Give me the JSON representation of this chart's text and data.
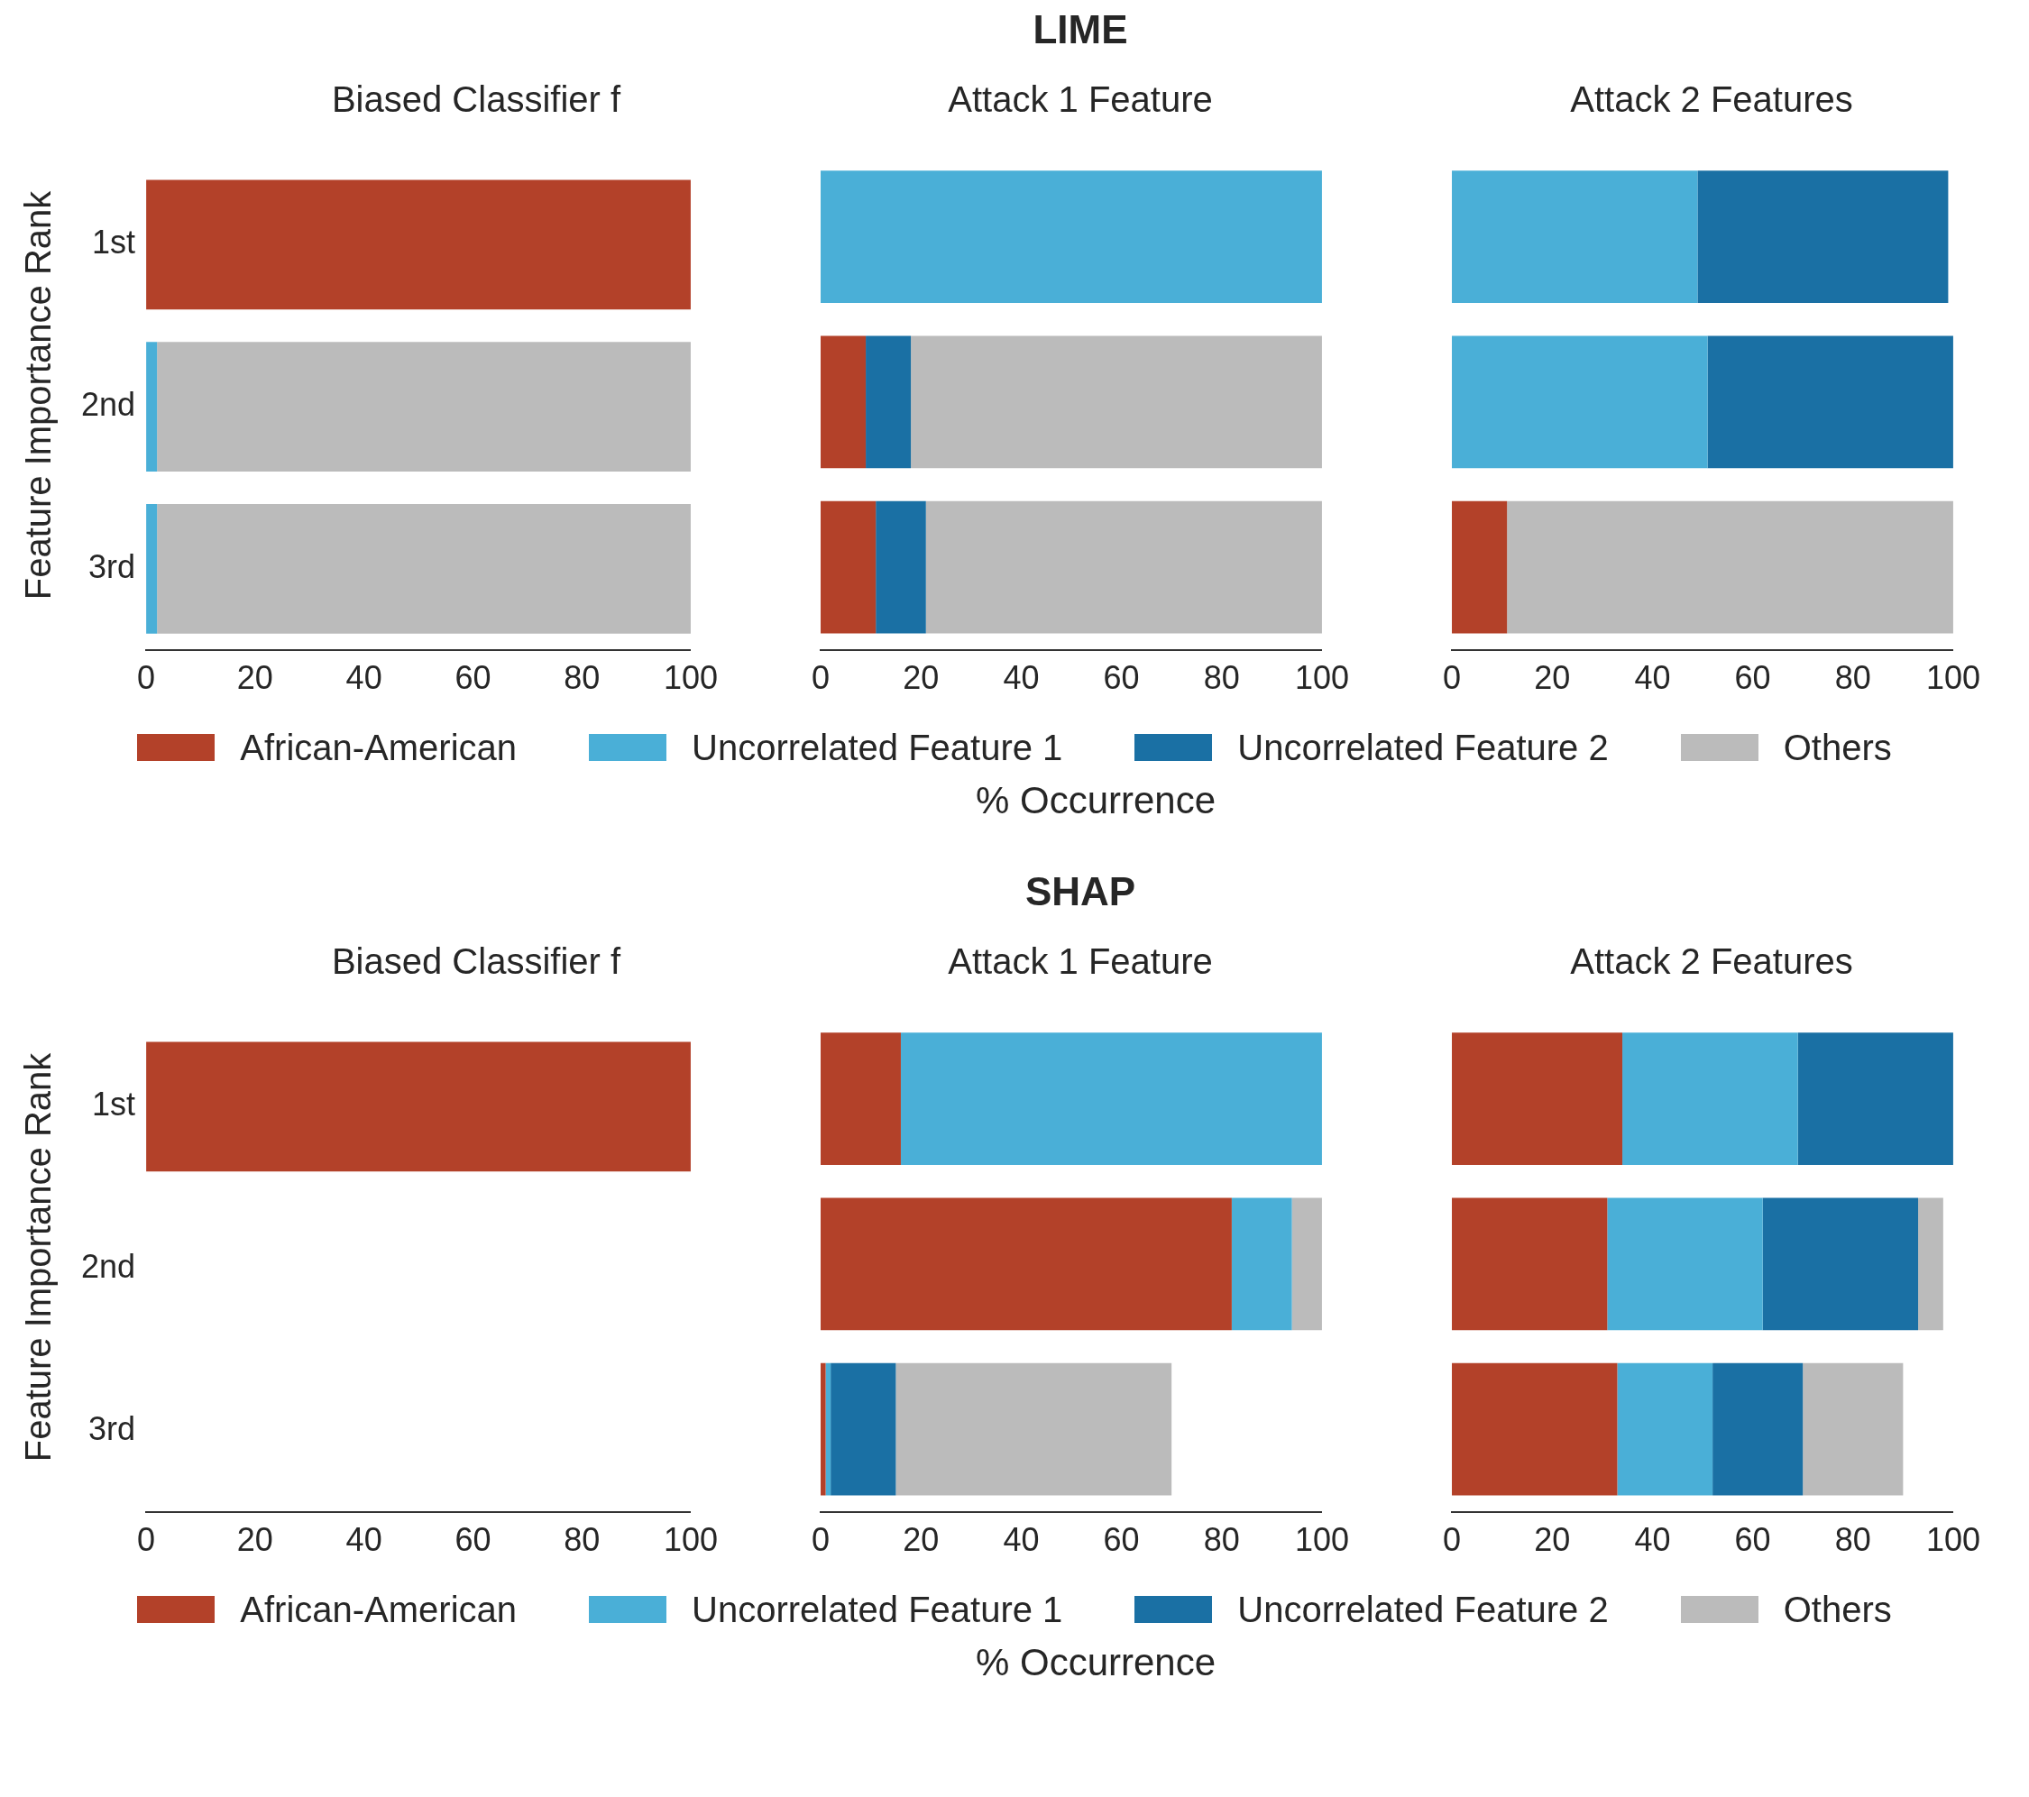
{
  "chart_data": [
    {
      "type": "bar",
      "orientation": "horizontal",
      "stacked": true,
      "subtitle": "Biased Classifier f",
      "ylabel": "Feature Importance Rank",
      "legend": "bottom",
      "categories": [
        "1st",
        "2nd",
        "3rd"
      ],
      "xlim": [
        0,
        100
      ],
      "xticks": [
        0,
        20,
        40,
        60,
        80,
        100
      ],
      "series": [
        {
          "name": "African-American",
          "color": "#b34129",
          "values": [
            100,
            null,
            null
          ]
        },
        {
          "name": "Uncorrelated Feature 1",
          "color": "#4aafd7",
          "values": [
            null,
            2,
            2
          ]
        },
        {
          "name": "Uncorrelated Feature 2",
          "color": "#1a70a4",
          "values": [
            null,
            null,
            null
          ]
        },
        {
          "name": "Others",
          "color": "#bbbbbb",
          "values": [
            null,
            98,
            98
          ]
        }
      ]
    },
    {
      "type": "bar",
      "orientation": "horizontal",
      "stacked": true,
      "title": "LIME",
      "subtitle": "Attack 1 Feature",
      "xlabel": "% Occurrence",
      "legend": "bottom",
      "tick_labels": "x",
      "categories": [
        "1st",
        "2nd",
        "3rd"
      ],
      "xlim": [
        0,
        100
      ],
      "xticks": [
        0,
        20,
        40,
        60,
        80,
        100
      ],
      "series": [
        {
          "name": "African-American",
          "color": "#b34129",
          "values": [
            null,
            9,
            11
          ]
        },
        {
          "name": "Uncorrelated Feature 1",
          "color": "#4aafd7",
          "values": [
            100,
            null,
            null
          ]
        },
        {
          "name": "Uncorrelated Feature 2",
          "color": "#1a70a4",
          "values": [
            null,
            9,
            10
          ]
        },
        {
          "name": "Others",
          "color": "#bbbbbb",
          "values": [
            null,
            82,
            79
          ]
        }
      ]
    },
    {
      "type": "bar",
      "orientation": "horizontal",
      "stacked": true,
      "subtitle": "Attack 2 Features",
      "legend": "bottom",
      "tick_labels": "x",
      "categories": [
        "1st",
        "2nd",
        "3rd"
      ],
      "xlim": [
        0,
        100
      ],
      "xticks": [
        0,
        20,
        40,
        60,
        80,
        100
      ],
      "series": [
        {
          "name": "African-American",
          "color": "#b34129",
          "values": [
            null,
            null,
            11
          ]
        },
        {
          "name": "Uncorrelated Feature 1",
          "color": "#4aafd7",
          "values": [
            49,
            51,
            null
          ]
        },
        {
          "name": "Uncorrelated Feature 2",
          "color": "#1a70a4",
          "values": [
            50,
            49,
            null
          ]
        },
        {
          "name": "Others",
          "color": "#bbbbbb",
          "values": [
            null,
            null,
            89
          ]
        }
      ]
    },
    {
      "type": "bar",
      "orientation": "horizontal",
      "stacked": true,
      "subtitle": "Biased Classifier f",
      "ylabel": "Feature Importance Rank",
      "legend": "bottom",
      "categories": [
        "1st",
        "2nd",
        "3rd"
      ],
      "xlim": [
        0,
        100
      ],
      "xticks": [
        0,
        20,
        40,
        60,
        80,
        100
      ],
      "series": [
        {
          "name": "African-American",
          "color": "#b34129",
          "values": [
            100,
            null,
            null
          ]
        },
        {
          "name": "Uncorrelated Feature 1",
          "color": "#4aafd7",
          "values": [
            null,
            null,
            null
          ]
        },
        {
          "name": "Uncorrelated Feature 2",
          "color": "#1a70a4",
          "values": [
            null,
            null,
            null
          ]
        },
        {
          "name": "Others",
          "color": "#bbbbbb",
          "values": [
            null,
            null,
            null
          ]
        }
      ]
    },
    {
      "type": "bar",
      "orientation": "horizontal",
      "stacked": true,
      "title": "SHAP",
      "subtitle": "Attack 1 Feature",
      "xlabel": "% Occurrence",
      "legend": "bottom",
      "tick_labels": "x",
      "categories": [
        "1st",
        "2nd",
        "3rd"
      ],
      "xlim": [
        0,
        100
      ],
      "xticks": [
        0,
        20,
        40,
        60,
        80,
        100
      ],
      "series": [
        {
          "name": "African-American",
          "color": "#b34129",
          "values": [
            16,
            82,
            1
          ]
        },
        {
          "name": "Uncorrelated Feature 1",
          "color": "#4aafd7",
          "values": [
            84,
            12,
            1
          ]
        },
        {
          "name": "Uncorrelated Feature 2",
          "color": "#1a70a4",
          "values": [
            null,
            null,
            13
          ]
        },
        {
          "name": "Others",
          "color": "#bbbbbb",
          "values": [
            null,
            6,
            55
          ]
        }
      ]
    },
    {
      "type": "bar",
      "orientation": "horizontal",
      "stacked": true,
      "subtitle": "Attack 2 Features",
      "legend": "bottom",
      "tick_labels": "x",
      "categories": [
        "1st",
        "2nd",
        "3rd"
      ],
      "xlim": [
        0,
        100
      ],
      "xticks": [
        0,
        20,
        40,
        60,
        80,
        100
      ],
      "series": [
        {
          "name": "African-American",
          "color": "#b34129",
          "values": [
            34,
            31,
            33
          ]
        },
        {
          "name": "Uncorrelated Feature 1",
          "color": "#4aafd7",
          "values": [
            35,
            31,
            19
          ]
        },
        {
          "name": "Uncorrelated Feature 2",
          "color": "#1a70a4",
          "values": [
            31,
            31,
            18
          ]
        },
        {
          "name": "Others",
          "color": "#bbbbbb",
          "values": [
            null,
            5,
            20
          ]
        }
      ]
    }
  ]
}
